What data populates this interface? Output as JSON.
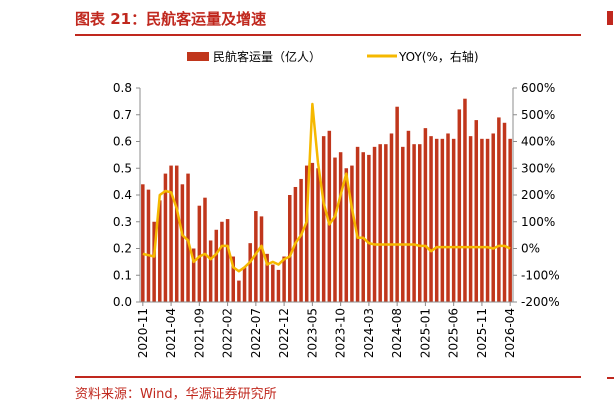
{
  "header": {
    "title": "图表 21：民航客运量及增速"
  },
  "footer": {
    "source": "资料来源：Wind，华源证券研究所"
  },
  "colors": {
    "bar": "#c0361c",
    "line": "#f5b800",
    "accent": "#c0281e",
    "axis": "#8c8c8c",
    "text": "#000000"
  },
  "chart_data": {
    "type": "bar",
    "title": "图表 21：民航客运量及增速",
    "legend": {
      "placement": "top",
      "items": [
        "民航客运量（亿人）",
        "YOY(%，右轴)"
      ]
    },
    "y_left": {
      "ylim": [
        0,
        0.8
      ],
      "ticks": [
        "0.0",
        "0.1",
        "0.2",
        "0.3",
        "0.4",
        "0.5",
        "0.6",
        "0.7",
        "0.8"
      ]
    },
    "y_right": {
      "ylim": [
        -200,
        600
      ],
      "ticks": [
        "-200%",
        "-100%",
        "0%",
        "100%",
        "200%",
        "300%",
        "400%",
        "500%",
        "600%"
      ]
    },
    "x_tick_labels": [
      "2020-11",
      "2021-04",
      "2021-09",
      "2022-02",
      "2022-07",
      "2022-12",
      "2023-05",
      "2023-10",
      "2024-03",
      "2024-08",
      "2025-01",
      "2025-06",
      "2025-11",
      "2026-04"
    ],
    "x": [
      "2020-11",
      "2020-12",
      "2021-01",
      "2021-02",
      "2021-03",
      "2021-04",
      "2021-05",
      "2021-06",
      "2021-07",
      "2021-08",
      "2021-09",
      "2021-10",
      "2021-11",
      "2021-12",
      "2022-01",
      "2022-02",
      "2022-03",
      "2022-04",
      "2022-05",
      "2022-06",
      "2022-07",
      "2022-08",
      "2022-09",
      "2022-10",
      "2022-11",
      "2022-12",
      "2023-01",
      "2023-02",
      "2023-03",
      "2023-04",
      "2023-05",
      "2023-06",
      "2023-07",
      "2023-08",
      "2023-09",
      "2023-10",
      "2023-11",
      "2023-12",
      "2024-01",
      "2024-02",
      "2024-03",
      "2024-04",
      "2024-05",
      "2024-06",
      "2024-07",
      "2024-08",
      "2024-09",
      "2024-10",
      "2024-11",
      "2024-12",
      "2025-01",
      "2025-02",
      "2025-03",
      "2025-04",
      "2025-05",
      "2025-06",
      "2025-07",
      "2025-08",
      "2025-09",
      "2025-10",
      "2025-11",
      "2025-12",
      "2026-01",
      "2026-02",
      "2026-03",
      "2026-04"
    ],
    "series": [
      {
        "name": "民航客运量（亿人）",
        "type": "bar",
        "axis": "left",
        "values": [
          0.44,
          0.42,
          0.3,
          0.38,
          0.48,
          0.51,
          0.51,
          0.44,
          0.48,
          0.2,
          0.36,
          0.39,
          0.23,
          0.27,
          0.3,
          0.31,
          0.17,
          0.08,
          0.13,
          0.22,
          0.34,
          0.32,
          0.18,
          0.14,
          0.12,
          0.17,
          0.4,
          0.43,
          0.46,
          0.51,
          0.52,
          0.5,
          0.62,
          0.64,
          0.54,
          0.56,
          0.5,
          0.51,
          0.58,
          0.56,
          0.55,
          0.58,
          0.59,
          0.59,
          0.63,
          0.73,
          0.58,
          0.64,
          0.59,
          0.59,
          0.65,
          0.62,
          0.61,
          0.61,
          0.63,
          0.61,
          0.72,
          0.76,
          0.62,
          0.68,
          0.61,
          0.61,
          0.63,
          0.69,
          0.67,
          0.61
        ]
      },
      {
        "name": "YOY(%，右轴)",
        "type": "line",
        "axis": "right",
        "values": [
          -20,
          -25,
          -30,
          200,
          215,
          210,
          150,
          50,
          30,
          -50,
          -30,
          -20,
          -40,
          -20,
          10,
          10,
          -70,
          -85,
          -70,
          -50,
          -20,
          10,
          -60,
          -50,
          -60,
          -40,
          -30,
          20,
          50,
          100,
          540,
          320,
          170,
          90,
          120,
          200,
          280,
          150,
          40,
          40,
          20,
          15,
          15,
          15,
          15,
          15,
          15,
          15,
          15,
          10,
          10,
          -10,
          5,
          5,
          5,
          5,
          5,
          5,
          5,
          5,
          5,
          5,
          0,
          10,
          10,
          0
        ]
      }
    ],
    "grid": false
  }
}
